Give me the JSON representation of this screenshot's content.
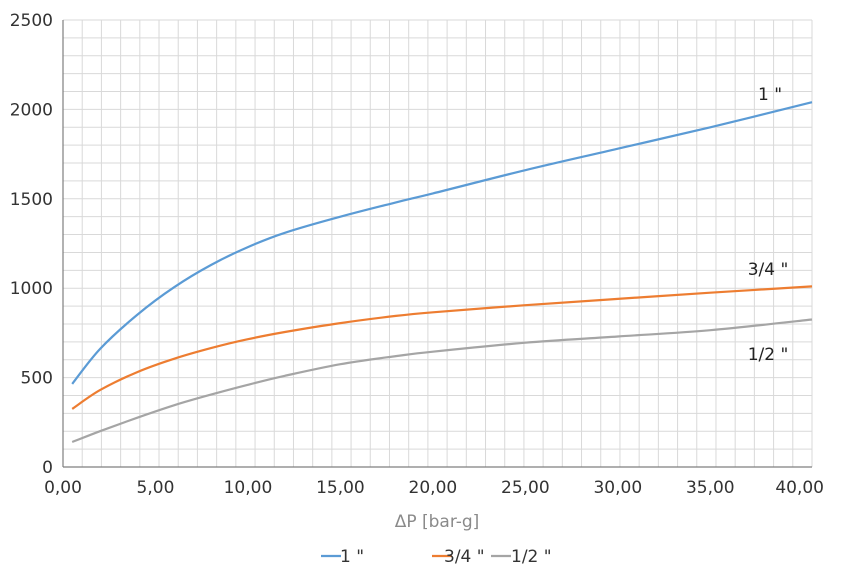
{
  "chart_data": {
    "type": "line",
    "title": "",
    "xlabel": "ΔP [bar-g]",
    "ylabel": "",
    "xlim": [
      0,
      40.5
    ],
    "ylim": [
      0,
      2500
    ],
    "x_ticks": [
      0,
      5,
      10,
      15,
      20,
      25,
      30,
      35,
      40
    ],
    "x_tick_labels": [
      "0,00",
      "5,00",
      "10,00",
      "15,00",
      "20,00",
      "25,00",
      "30,00",
      "35,00",
      "40,00"
    ],
    "y_ticks": [
      0,
      500,
      1000,
      1500,
      2000,
      2500
    ],
    "y_tick_labels": [
      "0",
      "500",
      "1000",
      "1500",
      "2000",
      "2500"
    ],
    "grid": true,
    "legend_position": "bottom",
    "series": [
      {
        "name": "1 \"",
        "label": "1 \"",
        "color": "#5b9bd5",
        "x": [
          0.5,
          2,
          4,
          6,
          8,
          10,
          12,
          15,
          18,
          20,
          25,
          30,
          35,
          40.5
        ],
        "y": [
          465,
          660,
          850,
          1005,
          1130,
          1230,
          1310,
          1400,
          1480,
          1530,
          1660,
          1780,
          1900,
          2040
        ]
      },
      {
        "name": "3/4 \"",
        "label": "3/4 \"",
        "color": "#ed7d31",
        "x": [
          0.5,
          2,
          4,
          6,
          8,
          10,
          12,
          15,
          18,
          20,
          25,
          30,
          35,
          40.5
        ],
        "y": [
          325,
          430,
          530,
          605,
          665,
          715,
          755,
          805,
          845,
          865,
          905,
          940,
          975,
          1010
        ]
      },
      {
        "name": "1/2 \"",
        "label": "1/2 \"",
        "color": "#a5a5a5",
        "x": [
          0.5,
          2,
          4,
          6,
          8,
          10,
          12,
          15,
          18,
          20,
          25,
          30,
          35,
          40.5
        ],
        "y": [
          140,
          200,
          275,
          345,
          405,
          460,
          510,
          575,
          620,
          645,
          695,
          730,
          765,
          825
        ]
      }
    ]
  }
}
